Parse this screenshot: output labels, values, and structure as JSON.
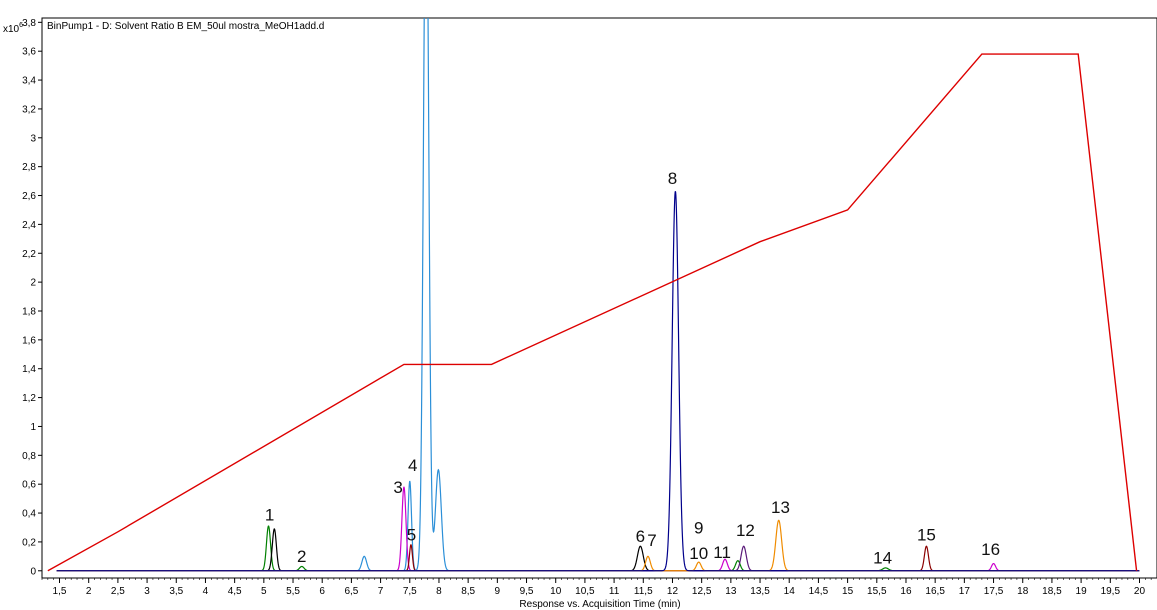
{
  "chart_data": {
    "type": "line",
    "title": "BinPump1 - D: Solvent Ratio B EM_50ul mostra_MeOH1add.d",
    "y_multiplier": "x10",
    "y_multiplier_exp": "6",
    "xlabel": "Response vs. Acquisition Time (min)",
    "xlim": [
      1.2,
      20.3
    ],
    "ylim": [
      -0.05,
      3.83
    ],
    "x_ticks": [
      "1,5",
      "2",
      "2,5",
      "3",
      "3,5",
      "4",
      "4,5",
      "5",
      "5,5",
      "6",
      "6,5",
      "7",
      "7,5",
      "8",
      "8,5",
      "9",
      "9,5",
      "10",
      "10,5",
      "11",
      "11,5",
      "12",
      "12,5",
      "13",
      "13,5",
      "14",
      "14,5",
      "15",
      "15,5",
      "16",
      "16,5",
      "17",
      "17,5",
      "18",
      "18,5",
      "19",
      "19,5",
      "20"
    ],
    "y_ticks": [
      "0",
      "0,2",
      "0,4",
      "0,6",
      "0,8",
      "1",
      "1,2",
      "1,4",
      "1,6",
      "1,8",
      "2",
      "2,2",
      "2,4",
      "2,6",
      "2,8",
      "3",
      "3,2",
      "3,4",
      "3,6",
      "3,8"
    ],
    "gradient": {
      "color": "#dd0000",
      "x": [
        1.3,
        2.5,
        7.4,
        8.9,
        13.5,
        15.0,
        17.3,
        18.95,
        19.95
      ],
      "y": [
        0.0,
        0.27,
        1.43,
        1.43,
        2.28,
        2.5,
        3.58,
        3.58,
        0.0
      ]
    },
    "series": [
      {
        "color": "#008000",
        "peaks": [
          [
            5.08,
            0.31,
            0.035
          ],
          [
            5.65,
            0.03,
            0.04
          ],
          [
            13.12,
            0.07,
            0.04
          ],
          [
            15.65,
            0.02,
            0.05
          ]
        ]
      },
      {
        "color": "#000000",
        "peaks": [
          [
            5.18,
            0.29,
            0.035
          ],
          [
            11.45,
            0.17,
            0.05
          ]
        ]
      },
      {
        "color": "#2b8fd8",
        "peaks": [
          [
            6.72,
            0.1,
            0.04
          ],
          [
            7.5,
            0.62,
            0.03
          ],
          [
            7.78,
            5.0,
            0.045
          ],
          [
            7.99,
            0.7,
            0.05
          ]
        ]
      },
      {
        "color": "#cc00cc",
        "peaks": [
          [
            7.4,
            0.58,
            0.035
          ],
          [
            12.9,
            0.08,
            0.04
          ],
          [
            17.5,
            0.05,
            0.035
          ]
        ]
      },
      {
        "color": "#8b0000",
        "peaks": [
          [
            7.52,
            0.18,
            0.025
          ],
          [
            16.35,
            0.17,
            0.035
          ]
        ]
      },
      {
        "color": "#5a1a7a",
        "peaks": [
          [
            13.22,
            0.17,
            0.045
          ]
        ]
      },
      {
        "color": "#f08c00",
        "peaks": [
          [
            11.58,
            0.1,
            0.04
          ],
          [
            12.45,
            0.06,
            0.04
          ],
          [
            13.82,
            0.35,
            0.05
          ]
        ]
      },
      {
        "color": "#00008b",
        "peaks": [
          [
            12.05,
            2.63,
            0.055
          ]
        ]
      }
    ],
    "annotations": [
      {
        "label": "1",
        "x": 5.1,
        "y": 0.35
      },
      {
        "label": "2",
        "x": 5.65,
        "y": 0.06
      },
      {
        "label": "3",
        "x": 7.3,
        "y": 0.54
      },
      {
        "label": "4",
        "x": 7.55,
        "y": 0.69
      },
      {
        "label": "5",
        "x": 7.53,
        "y": 0.21
      },
      {
        "label": "6",
        "x": 11.45,
        "y": 0.2
      },
      {
        "label": "7",
        "x": 11.65,
        "y": 0.17
      },
      {
        "label": "8",
        "x": 12.0,
        "y": 2.68
      },
      {
        "label": "9",
        "x": 12.45,
        "y": 0.26
      },
      {
        "label": "10",
        "x": 12.45,
        "y": 0.08
      },
      {
        "label": "11",
        "x": 12.85,
        "y": 0.09
      },
      {
        "label": "12",
        "x": 13.25,
        "y": 0.24
      },
      {
        "label": "13",
        "x": 13.85,
        "y": 0.4
      },
      {
        "label": "14",
        "x": 15.6,
        "y": 0.05
      },
      {
        "label": "15",
        "x": 16.35,
        "y": 0.21
      },
      {
        "label": "16",
        "x": 17.45,
        "y": 0.11
      }
    ]
  }
}
